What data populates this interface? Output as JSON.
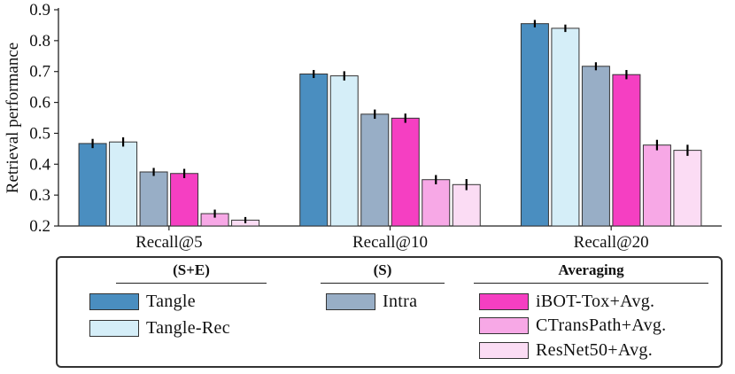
{
  "chart_data": {
    "type": "bar",
    "ylabel": "Retrieval performance",
    "ylim": [
      0.2,
      0.9
    ],
    "yticks": [
      "0.2",
      "0.3",
      "0.4",
      "0.5",
      "0.6",
      "0.7",
      "0.8",
      "0.9"
    ],
    "categories": [
      "Recall@5",
      "Recall@10",
      "Recall@20"
    ],
    "series": [
      {
        "name": "Tangle",
        "color": "#4a8ec0",
        "values": [
          0.467,
          0.692,
          0.855
        ],
        "errors": [
          0.015,
          0.013,
          0.012
        ]
      },
      {
        "name": "Tangle-Rec",
        "color": "#d5eef8",
        "values": [
          0.472,
          0.686,
          0.84
        ],
        "errors": [
          0.015,
          0.015,
          0.012
        ]
      },
      {
        "name": "Intra",
        "color": "#98aec6",
        "values": [
          0.375,
          0.562,
          0.717
        ],
        "errors": [
          0.013,
          0.015,
          0.013
        ]
      },
      {
        "name": "iBOT-Tox+Avg.",
        "color": "#f53fc2",
        "values": [
          0.37,
          0.549,
          0.69
        ],
        "errors": [
          0.015,
          0.015,
          0.015
        ]
      },
      {
        "name": "CTransPath+Avg.",
        "color": "#f7a8e6",
        "values": [
          0.24,
          0.35,
          0.462
        ],
        "errors": [
          0.013,
          0.015,
          0.017
        ]
      },
      {
        "name": "ResNet50+Avg.",
        "color": "#fbdcf4",
        "values": [
          0.219,
          0.334,
          0.445
        ],
        "errors": [
          0.01,
          0.018,
          0.018
        ]
      }
    ],
    "grid": false
  },
  "legend": {
    "groups": [
      {
        "title": "(S+E)",
        "items": [
          0,
          1
        ]
      },
      {
        "title": "(S)",
        "items": [
          2
        ]
      },
      {
        "title": "Averaging",
        "items": [
          3,
          4,
          5
        ]
      }
    ],
    "labels": [
      "Tangle",
      "Tangle-Rec",
      "Intra",
      "iBOT-Tox+Avg.",
      "CTransPath+Avg.",
      "ResNet50+Avg."
    ]
  }
}
